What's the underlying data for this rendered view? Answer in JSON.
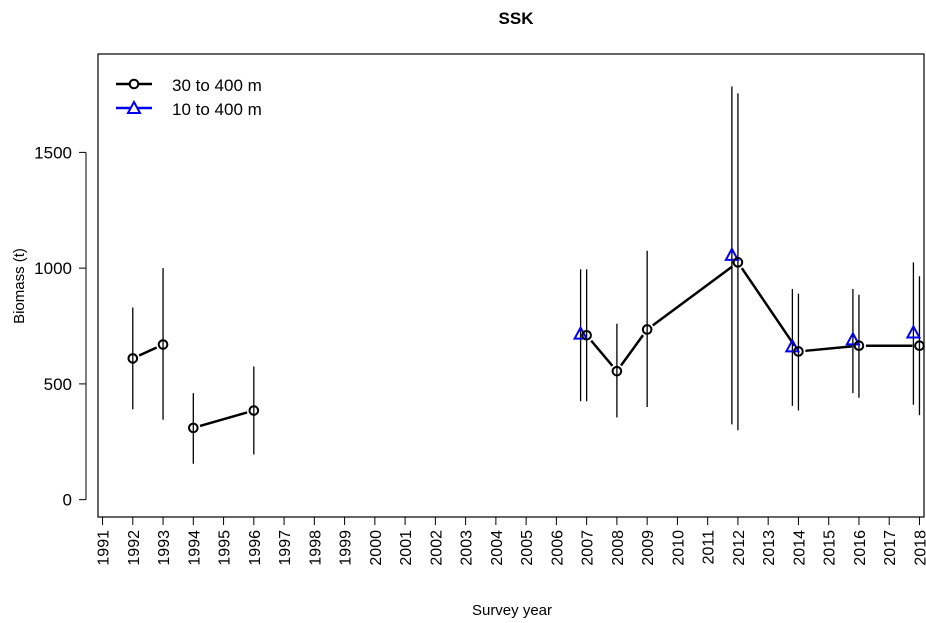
{
  "chart_data": {
    "type": "line",
    "title": "SSK",
    "xlabel": "Survey year",
    "ylabel": "Biomass (t)",
    "xlim": [
      1990.85,
      2018.15
    ],
    "ylim": [
      -75,
      1925
    ],
    "y_ticks": [
      0,
      500,
      1000,
      1500
    ],
    "x_ticks": [
      1991,
      1992,
      1993,
      1994,
      1995,
      1996,
      1997,
      1998,
      1999,
      2000,
      2001,
      2002,
      2003,
      2004,
      2005,
      2006,
      2007,
      2008,
      2009,
      2010,
      2011,
      2012,
      2013,
      2014,
      2015,
      2016,
      2017,
      2018
    ],
    "grid": false,
    "legend_position": "top-left",
    "series": [
      {
        "name": "30 to 400 m",
        "color": "#000000",
        "marker": "circle",
        "segments": [
          [
            {
              "x": 1992,
              "y": 610,
              "lo": 390,
              "hi": 830
            },
            {
              "x": 1993,
              "y": 670,
              "lo": 345,
              "hi": 1000
            }
          ],
          [
            {
              "x": 1994,
              "y": 310,
              "lo": 155,
              "hi": 460
            },
            {
              "x": 1996,
              "y": 385,
              "lo": 195,
              "hi": 575
            }
          ],
          [
            {
              "x": 2007,
              "y": 710,
              "lo": 425,
              "hi": 995
            },
            {
              "x": 2008,
              "y": 555,
              "lo": 355,
              "hi": 760
            },
            {
              "x": 2009,
              "y": 735,
              "lo": 400,
              "hi": 1075
            },
            {
              "x": 2012,
              "y": 1025,
              "lo": 300,
              "hi": 1755
            },
            {
              "x": 2014,
              "y": 640,
              "lo": 385,
              "hi": 890
            },
            {
              "x": 2016,
              "y": 665,
              "lo": 440,
              "hi": 885
            },
            {
              "x": 2018,
              "y": 665,
              "lo": 365,
              "hi": 965
            }
          ]
        ]
      },
      {
        "name": "10 to 400 m",
        "color": "#0000ee",
        "marker": "triangle",
        "points": [
          {
            "x": 2006.8,
            "y": 715,
            "lo": 425,
            "hi": 995
          },
          {
            "x": 2011.8,
            "y": 1055,
            "lo": 325,
            "hi": 1785
          },
          {
            "x": 2013.8,
            "y": 660,
            "lo": 405,
            "hi": 910
          },
          {
            "x": 2015.8,
            "y": 690,
            "lo": 460,
            "hi": 910
          },
          {
            "x": 2017.8,
            "y": 720,
            "lo": 410,
            "hi": 1025
          }
        ]
      }
    ]
  }
}
